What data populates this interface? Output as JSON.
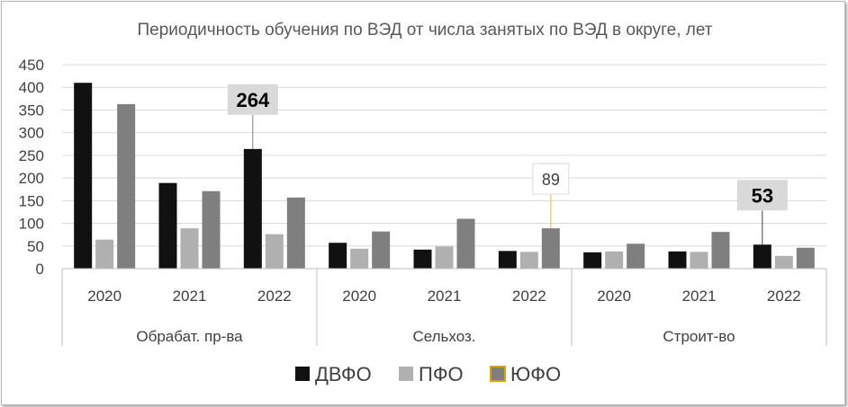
{
  "chart_data": {
    "type": "bar",
    "title": "Периодичность обучения по ВЭД от числа занятых по ВЭД в округе, лет",
    "ylim": [
      0,
      450
    ],
    "yticks": [
      "0",
      "50",
      "100",
      "150",
      "200",
      "250",
      "300",
      "350",
      "400",
      "450"
    ],
    "grid": true,
    "legend_position": "bottom",
    "groups": [
      {
        "label": "Обрабат. пр-ва",
        "categories": [
          "2020",
          "2021",
          "2022"
        ]
      },
      {
        "label": "Сельхоз.",
        "categories": [
          "2020",
          "2021",
          "2022"
        ]
      },
      {
        "label": "Строит-во",
        "categories": [
          "2020",
          "2021",
          "2022"
        ]
      }
    ],
    "series": [
      {
        "name": "ДВФО",
        "color": "#111111",
        "values": [
          410,
          189,
          264,
          57,
          42,
          39,
          36,
          38,
          53
        ]
      },
      {
        "name": "ПФО",
        "color": "#b0b0b0",
        "values": [
          64,
          89,
          76,
          44,
          49,
          37,
          38,
          37,
          28
        ]
      },
      {
        "name": "ЮФО",
        "color": "#7f7f7f",
        "legend_border": "#d4a800",
        "values": [
          363,
          171,
          157,
          82,
          110,
          89,
          55,
          81,
          46
        ]
      }
    ],
    "callouts": [
      {
        "text": "264",
        "series": 0,
        "index": 2,
        "bold": true,
        "line_color": "#7f7f7f"
      },
      {
        "text": "89",
        "series": 2,
        "index": 5,
        "bold": false,
        "line_color": "#f0c000"
      },
      {
        "text": "53",
        "series": 0,
        "index": 8,
        "bold": true,
        "line_color": "#404040"
      }
    ]
  }
}
